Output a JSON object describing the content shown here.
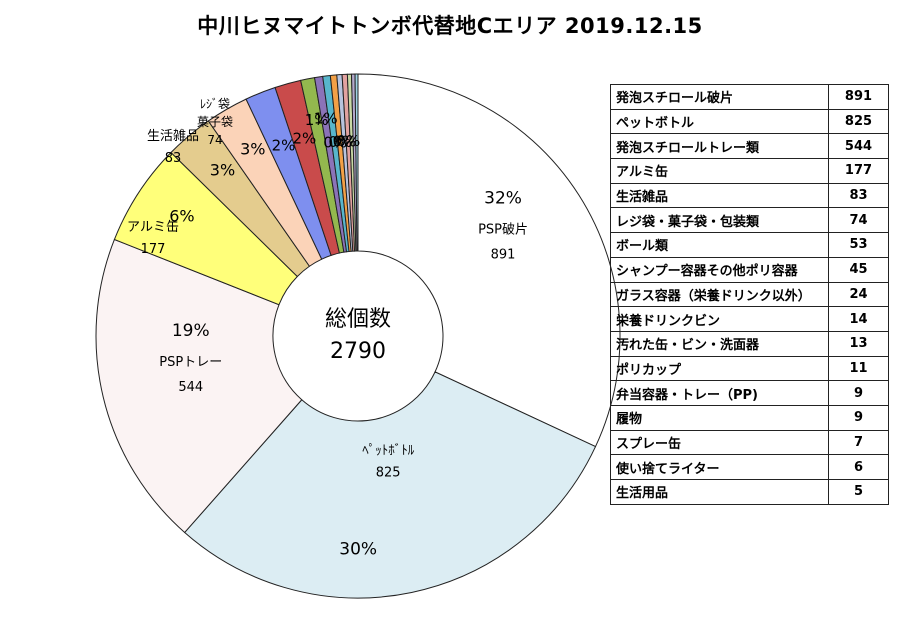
{
  "title": "中川ヒヌマイトトンボ代替地Cエリア 2019.12.15",
  "center": {
    "label": "総個数",
    "total": "2790"
  },
  "chart_data": {
    "type": "pie",
    "title": "中川ヒヌマイトトンボ代替地Cエリア 2019.12.15",
    "categories": [
      "発泡スチロール破片",
      "ペットボトル",
      "発泡スチロールトレー類",
      "アルミ缶",
      "生活雑品",
      "レジ袋・菓子袋・包装類",
      "ボール類",
      "シャンプー容器その他ポリ容器",
      "ガラス容器（栄養ドリンク以外）",
      "栄養ドリンクビン",
      "汚れた缶・ビン・洗面器",
      "ポリカップ",
      "弁当容器・トレー（PP)",
      "履物",
      "スプレー缶",
      "使い捨てライター",
      "生活用品"
    ],
    "values": [
      891,
      825,
      544,
      177,
      83,
      74,
      53,
      45,
      24,
      14,
      13,
      11,
      9,
      9,
      7,
      6,
      5
    ],
    "total": 2790,
    "colors": [
      "#ffffff",
      "#dcedf3",
      "#fbf3f3",
      "#ffff7a",
      "#e4cc8e",
      "#fbd3b8",
      "#7e8fef",
      "#c94b4b",
      "#93b84e",
      "#8b73b8",
      "#58b6cc",
      "#f2a046",
      "#b8c4de",
      "#e2a2a0",
      "#c9d9a5",
      "#b4a9cc",
      "#9fd3e2"
    ],
    "slice_labels": [
      {
        "index": 0,
        "pct": "32%",
        "name": "PSP破片",
        "value": "891"
      },
      {
        "index": 1,
        "pct": "30%",
        "name": "ﾍﾟｯﾄﾎﾞﾄﾙ",
        "value": "825"
      },
      {
        "index": 2,
        "pct": "19%",
        "name": "PSPトレー",
        "value": "544"
      },
      {
        "index": 3,
        "pct": "6%",
        "name": "アルミ缶",
        "value": "177"
      },
      {
        "index": 4,
        "pct": "3%",
        "name": "生活雑品",
        "value": "83"
      },
      {
        "index": 5,
        "pct": "3%",
        "name": "ﾚｼﾞ袋\n菓子袋",
        "value": "74"
      },
      {
        "index": 6,
        "pct": "2%"
      },
      {
        "index": 7,
        "pct": "2%"
      },
      {
        "index": 8,
        "pct": "1%"
      },
      {
        "index": 9,
        "pct": "1%"
      },
      {
        "index": 10,
        "pct": "0%"
      },
      {
        "index": 11,
        "pct": "0%"
      },
      {
        "index": 12,
        "pct": "0%"
      },
      {
        "index": 13,
        "pct": "0%"
      }
    ]
  }
}
